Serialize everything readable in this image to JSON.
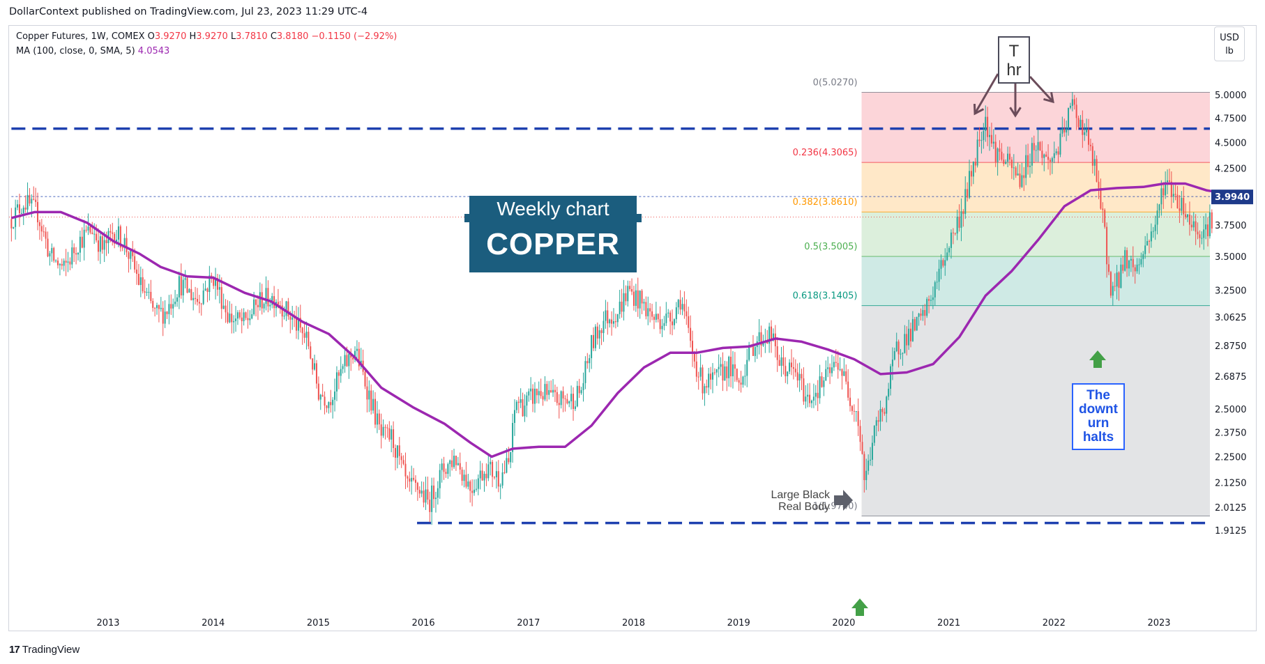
{
  "header": {
    "publisher_line": "DollarContext published on TradingView.com, Jul 23, 2023 11:29 UTC-4"
  },
  "legend": {
    "symbol": "Copper Futures, 1W, COMEX",
    "open_label": "O",
    "open": "3.9270",
    "high_label": "H",
    "high": "3.9270",
    "low_label": "L",
    "low": "3.7810",
    "close_label": "C",
    "close": "3.8180",
    "change": "−0.1150 (−2.92%)",
    "ma_label": "MA (100, close, 0, SMA, 5)",
    "ma_value": "4.0543"
  },
  "currency": {
    "line1": "USD",
    "line2": "lb"
  },
  "footer": {
    "brand": "TradingView",
    "logo": "tradingview-logo-icon"
  },
  "annotations": {
    "weekly_sub": "Weekly chart",
    "weekly_main": "COPPER",
    "th_line1": "T",
    "th_line2": "hr",
    "halts": [
      "The",
      "downt",
      "urn",
      "halts"
    ],
    "large_black": [
      "Large Black",
      "Real Body"
    ]
  },
  "colors": {
    "up": "#26a69a",
    "down": "#ef5350",
    "ma": "#9c27b0",
    "level_line": "#1e40af",
    "fib_0_236": "#fcd5d9",
    "fib_236_382": "#ffe8c8",
    "fib_382_5": "#dcefdc",
    "fib_5_618": "#cfeae5",
    "fib_618_1": "#e3e4e6",
    "arrow_up": "#43a047",
    "arrow_side": "#5d606b"
  },
  "chart_data": {
    "type": "candlestick",
    "title": "Copper Futures, 1W, COMEX",
    "x_axis": {
      "ticks": [
        "2013",
        "2014",
        "2015",
        "2016",
        "2017",
        "2018",
        "2019",
        "2020",
        "2021",
        "2022",
        "2023"
      ],
      "xlim": [
        2012.08,
        2023.62
      ]
    },
    "y_axis": {
      "scale": "log",
      "unit": "USD/lb",
      "ticks": [
        "5.0000",
        "4.7500",
        "4.5000",
        "4.2500",
        "4.0000",
        "3.7500",
        "3.5000",
        "3.2500",
        "3.0625",
        "2.8750",
        "2.6875",
        "2.5000",
        "2.3750",
        "2.2500",
        "2.1250",
        "2.0125",
        "1.9125"
      ],
      "ylim": [
        1.87,
        5.2
      ]
    },
    "last_price_label": "3.9940",
    "last_price": 3.994,
    "price_line": 3.818,
    "fibonacci": {
      "x_range": [
        2020.17,
        2023.62
      ],
      "levels": [
        {
          "ratio": "0",
          "price": 5.027,
          "label": "0(5.0270)",
          "color": "#787b86"
        },
        {
          "ratio": "0.236",
          "price": 4.3065,
          "label": "0.236(4.3065)",
          "color": "#f23645"
        },
        {
          "ratio": "0.382",
          "price": 3.861,
          "label": "0.382(3.8610)",
          "color": "#ff9800"
        },
        {
          "ratio": "0.5",
          "price": 3.5005,
          "label": "0.5(3.5005)",
          "color": "#4caf50"
        },
        {
          "ratio": "0.618",
          "price": 3.1405,
          "label": "0.618(3.1405)",
          "color": "#089981"
        },
        {
          "ratio": "1",
          "price": 1.974,
          "label": "1(1.9740)",
          "color": "#787b86"
        }
      ]
    },
    "horizontal_levels": [
      {
        "name": "resistance",
        "price": 4.64,
        "style": "dashed",
        "x_start": 2012.08,
        "x_end": 2023.62
      },
      {
        "name": "support",
        "price": 1.944,
        "style": "dashed",
        "x_start": 2015.94,
        "x_end": 2023.62
      },
      {
        "name": "reference",
        "price": 3.994,
        "style": "dotted",
        "x_start": 2012.08,
        "x_end": 2023.62
      }
    ],
    "price_path": [
      [
        2012.08,
        3.8
      ],
      [
        2012.2,
        3.95
      ],
      [
        2012.33,
        3.85
      ],
      [
        2012.45,
        3.5
      ],
      [
        2012.58,
        3.4
      ],
      [
        2012.72,
        3.62
      ],
      [
        2012.85,
        3.72
      ],
      [
        2012.95,
        3.55
      ],
      [
        2013.05,
        3.7
      ],
      [
        2013.15,
        3.62
      ],
      [
        2013.3,
        3.3
      ],
      [
        2013.45,
        3.08
      ],
      [
        2013.55,
        3.1
      ],
      [
        2013.68,
        3.3
      ],
      [
        2013.85,
        3.18
      ],
      [
        2014.0,
        3.35
      ],
      [
        2014.15,
        3.06
      ],
      [
        2014.3,
        3.02
      ],
      [
        2014.45,
        3.18
      ],
      [
        2014.6,
        3.2
      ],
      [
        2014.75,
        3.05
      ],
      [
        2014.9,
        2.9
      ],
      [
        2015.0,
        2.6
      ],
      [
        2015.1,
        2.55
      ],
      [
        2015.25,
        2.75
      ],
      [
        2015.35,
        2.85
      ],
      [
        2015.5,
        2.55
      ],
      [
        2015.6,
        2.35
      ],
      [
        2015.7,
        2.35
      ],
      [
        2015.85,
        2.1
      ],
      [
        2015.95,
        2.1
      ],
      [
        2016.05,
        2.03
      ],
      [
        2016.18,
        2.18
      ],
      [
        2016.3,
        2.25
      ],
      [
        2016.45,
        2.1
      ],
      [
        2016.6,
        2.2
      ],
      [
        2016.72,
        2.15
      ],
      [
        2016.82,
        2.22
      ],
      [
        2016.88,
        2.55
      ],
      [
        2016.95,
        2.52
      ],
      [
        2017.1,
        2.6
      ],
      [
        2017.25,
        2.55
      ],
      [
        2017.4,
        2.55
      ],
      [
        2017.5,
        2.6
      ],
      [
        2017.6,
        2.88
      ],
      [
        2017.72,
        3.05
      ],
      [
        2017.85,
        3.1
      ],
      [
        2017.95,
        3.25
      ],
      [
        2018.05,
        3.18
      ],
      [
        2018.2,
        3.05
      ],
      [
        2018.35,
        3.05
      ],
      [
        2018.45,
        3.2
      ],
      [
        2018.55,
        2.85
      ],
      [
        2018.65,
        2.65
      ],
      [
        2018.75,
        2.65
      ],
      [
        2018.9,
        2.75
      ],
      [
        2019.0,
        2.65
      ],
      [
        2019.15,
        2.9
      ],
      [
        2019.3,
        2.95
      ],
      [
        2019.4,
        2.75
      ],
      [
        2019.55,
        2.7
      ],
      [
        2019.65,
        2.55
      ],
      [
        2019.8,
        2.65
      ],
      [
        2019.95,
        2.78
      ],
      [
        2020.05,
        2.58
      ],
      [
        2020.12,
        2.5
      ],
      [
        2020.17,
        2.3
      ],
      [
        2020.2,
        2.12
      ],
      [
        2020.28,
        2.35
      ],
      [
        2020.4,
        2.55
      ],
      [
        2020.5,
        2.85
      ],
      [
        2020.62,
        2.95
      ],
      [
        2020.75,
        3.05
      ],
      [
        2020.88,
        3.3
      ],
      [
        2021.0,
        3.6
      ],
      [
        2021.12,
        3.85
      ],
      [
        2021.2,
        4.15
      ],
      [
        2021.3,
        4.6
      ],
      [
        2021.35,
        4.75
      ],
      [
        2021.42,
        4.45
      ],
      [
        2021.55,
        4.3
      ],
      [
        2021.68,
        4.15
      ],
      [
        2021.82,
        4.5
      ],
      [
        2021.95,
        4.3
      ],
      [
        2022.07,
        4.5
      ],
      [
        2022.17,
        4.9
      ],
      [
        2022.3,
        4.6
      ],
      [
        2022.4,
        4.2
      ],
      [
        2022.48,
        3.7
      ],
      [
        2022.53,
        3.3
      ],
      [
        2022.58,
        3.25
      ],
      [
        2022.68,
        3.5
      ],
      [
        2022.78,
        3.4
      ],
      [
        2022.88,
        3.6
      ],
      [
        2022.98,
        3.8
      ],
      [
        2023.05,
        4.15
      ],
      [
        2023.12,
        4.05
      ],
      [
        2023.22,
        3.92
      ],
      [
        2023.32,
        3.75
      ],
      [
        2023.42,
        3.7
      ],
      [
        2023.52,
        3.82
      ]
    ],
    "ma_series": {
      "name": "MA (100, close, 0, SMA, 5)",
      "points": [
        [
          2012.08,
          3.81
        ],
        [
          2012.3,
          3.86
        ],
        [
          2012.55,
          3.86
        ],
        [
          2012.8,
          3.77
        ],
        [
          2013.05,
          3.62
        ],
        [
          2013.3,
          3.52
        ],
        [
          2013.5,
          3.42
        ],
        [
          2013.75,
          3.35
        ],
        [
          2014.0,
          3.34
        ],
        [
          2014.3,
          3.23
        ],
        [
          2014.55,
          3.17
        ],
        [
          2014.85,
          3.03
        ],
        [
          2015.1,
          2.95
        ],
        [
          2015.35,
          2.8
        ],
        [
          2015.6,
          2.62
        ],
        [
          2015.9,
          2.51
        ],
        [
          2016.2,
          2.42
        ],
        [
          2016.45,
          2.32
        ],
        [
          2016.65,
          2.25
        ],
        [
          2016.85,
          2.29
        ],
        [
          2017.1,
          2.3
        ],
        [
          2017.35,
          2.3
        ],
        [
          2017.6,
          2.41
        ],
        [
          2017.85,
          2.59
        ],
        [
          2018.1,
          2.74
        ],
        [
          2018.35,
          2.83
        ],
        [
          2018.6,
          2.83
        ],
        [
          2018.85,
          2.86
        ],
        [
          2019.1,
          2.87
        ],
        [
          2019.35,
          2.92
        ],
        [
          2019.6,
          2.9
        ],
        [
          2019.85,
          2.85
        ],
        [
          2020.1,
          2.79
        ],
        [
          2020.35,
          2.7
        ],
        [
          2020.6,
          2.71
        ],
        [
          2020.85,
          2.76
        ],
        [
          2021.1,
          2.93
        ],
        [
          2021.35,
          3.21
        ],
        [
          2021.6,
          3.39
        ],
        [
          2021.85,
          3.63
        ],
        [
          2022.1,
          3.91
        ],
        [
          2022.35,
          4.05
        ],
        [
          2022.6,
          4.07
        ],
        [
          2022.85,
          4.08
        ],
        [
          2023.05,
          4.11
        ],
        [
          2023.25,
          4.11
        ],
        [
          2023.45,
          4.05
        ],
        [
          2023.58,
          4.03
        ]
      ]
    }
  }
}
